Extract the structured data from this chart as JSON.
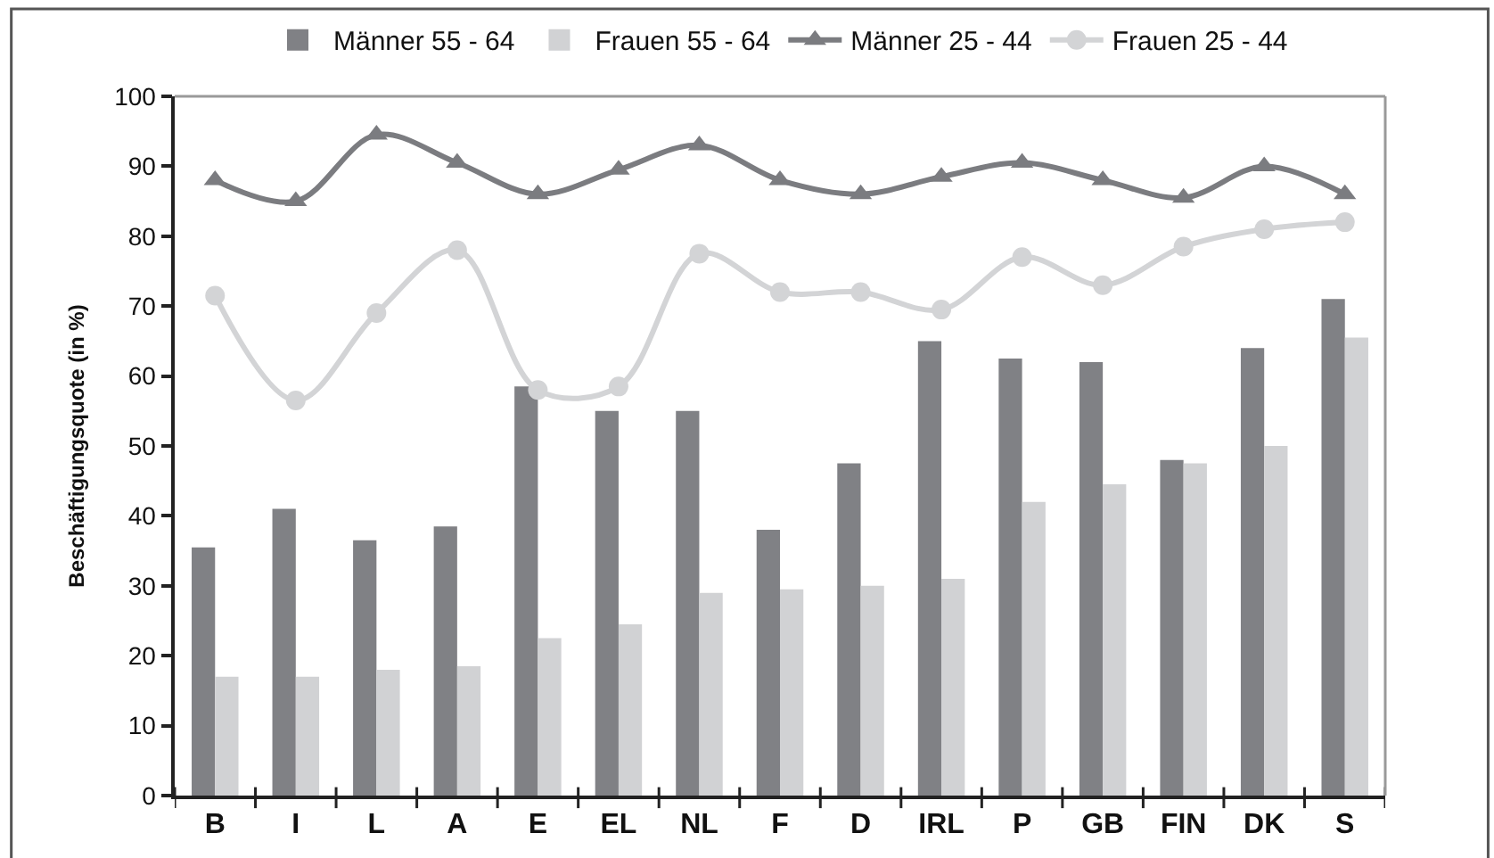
{
  "chart_data": {
    "type": "bar",
    "ylabel": "Beschäftigungsquote (in %)",
    "categories": [
      "B",
      "I",
      "L",
      "A",
      "E",
      "EL",
      "NL",
      "F",
      "D",
      "IRL",
      "P",
      "GB",
      "FIN",
      "DK",
      "S"
    ],
    "series": [
      {
        "name": "Männer 55 - 64",
        "color": "#808185",
        "values": [
          35.5,
          41,
          36.5,
          38.5,
          58.5,
          55,
          55,
          38,
          47.5,
          65,
          62.5,
          62,
          48,
          64,
          71
        ]
      },
      {
        "name": "Frauen 55 - 64",
        "color": "#d1d2d4",
        "values": [
          17,
          17,
          18,
          18.5,
          22.5,
          24.5,
          29,
          29.5,
          30,
          31,
          42,
          44.5,
          47.5,
          50,
          65.5
        ]
      },
      {
        "name": "Männer 25 - 44",
        "type": "line",
        "marker": "triangle",
        "color": "#7b7c80",
        "values": [
          88,
          85,
          94.5,
          90.5,
          86,
          89.5,
          93,
          88,
          86,
          88.5,
          90.5,
          88,
          85.5,
          90,
          86
        ]
      },
      {
        "name": "Frauen 25 - 44",
        "type": "line",
        "marker": "circle",
        "color": "#d3d4d6",
        "values": [
          71.5,
          56.5,
          69,
          78,
          58,
          58.5,
          77.5,
          72,
          72,
          69.5,
          77,
          73,
          78.5,
          81,
          82
        ]
      }
    ],
    "ylim": [
      0,
      100
    ],
    "yticks": [
      0,
      10,
      20,
      30,
      40,
      50,
      60,
      70,
      80,
      90,
      100
    ],
    "legend": "top"
  }
}
